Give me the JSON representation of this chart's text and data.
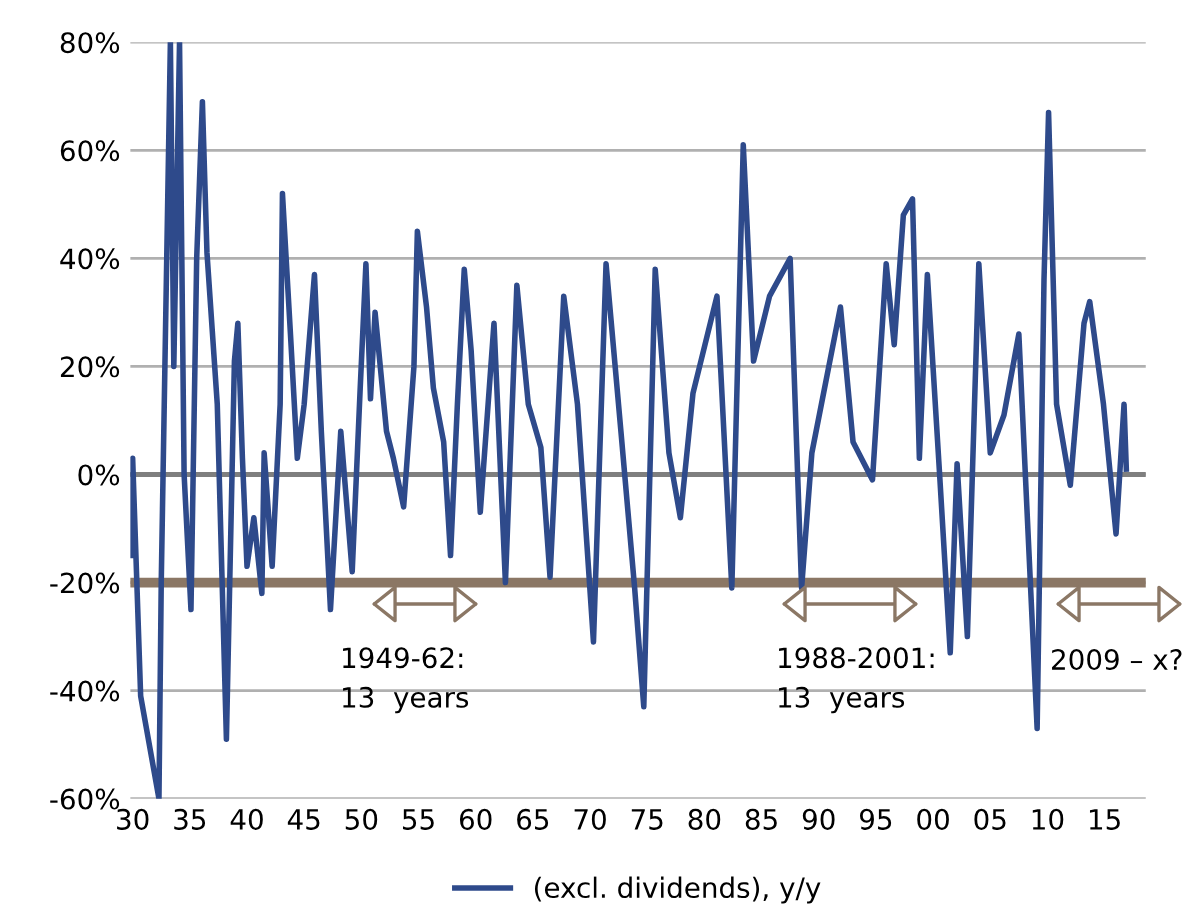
{
  "chart_data": {
    "type": "line",
    "x": [
      1929.9,
      1930.0,
      1930.7,
      1932.3,
      1932.5,
      1933.3,
      1933.6,
      1934.1,
      1934.5,
      1935.1,
      1935.6,
      1936.1,
      1936.5,
      1937.4,
      1938.2,
      1938.9,
      1939.2,
      1939.6,
      1940.0,
      1940.6,
      1941.3,
      1941.5,
      1942.2,
      1942.9,
      1943.1,
      1943.8,
      1944.4,
      1945.0,
      1945.9,
      1946.5,
      1947.3,
      1948.2,
      1949.2,
      1949.9,
      1950.4,
      1950.8,
      1951.2,
      1952.2,
      1952.8,
      1953.7,
      1954.6,
      1954.9,
      1955.7,
      1956.3,
      1957.2,
      1957.8,
      1958.4,
      1959.0,
      1959.6,
      1960.4,
      1961.6,
      1962.6,
      1963.6,
      1964.6,
      1965.7,
      1966.5,
      1967.7,
      1968.9,
      1970.3,
      1971.4,
      1972.7,
      1973.9,
      1974.7,
      1975.7,
      1976.9,
      1977.9,
      1979.0,
      1981.1,
      1982.4,
      1983.4,
      1984.3,
      1985.7,
      1987.5,
      1988.5,
      1989.4,
      1991.9,
      1993.0,
      1994.7,
      1995.9,
      1996.6,
      1997.4,
      1998.2,
      1998.8,
      1999.5,
      2000.6,
      2001.5,
      2002.1,
      2003.0,
      2004.0,
      2005.0,
      2006.2,
      2007.5,
      2008.2,
      2009.1,
      2009.7,
      2010.1,
      2010.8,
      2012.0,
      2013.2,
      2013.7,
      2014.9,
      2016.0,
      2016.7,
      2016.9
    ],
    "series": [
      {
        "name": "(excl. dividends), y/y",
        "color": "#2e4a8b",
        "values": [
          -15,
          3,
          -41,
          -60,
          -20,
          80,
          20,
          80,
          0,
          -25,
          40,
          69,
          41,
          13,
          -49,
          21,
          28,
          3,
          -17,
          -8,
          -22,
          4,
          -17,
          13,
          52,
          26,
          3,
          13,
          37,
          8,
          -25,
          8,
          -18,
          16,
          39,
          14,
          30,
          8,
          3,
          -6,
          20,
          45,
          31,
          16,
          6,
          -15,
          13,
          38,
          23,
          -7,
          28,
          -20,
          35,
          13,
          5,
          -19,
          33,
          13,
          -31,
          39,
          8,
          -21,
          -43,
          38,
          4,
          -8,
          15,
          33,
          -21,
          61,
          21,
          33,
          40,
          -21,
          4,
          31,
          6,
          -1,
          39,
          24,
          48,
          51,
          3,
          37,
          -1,
          -33,
          2,
          -30,
          39,
          4,
          11,
          26,
          -6,
          -47,
          36,
          67,
          13,
          -2,
          28,
          32,
          13,
          -11,
          13,
          1
        ]
      }
    ],
    "xlim": [
      1929.8,
      2018.6
    ],
    "ylim": [
      -60,
      80
    ],
    "xticks": [
      {
        "value": 1930,
        "label": "30"
      },
      {
        "value": 1935,
        "label": "35"
      },
      {
        "value": 1940,
        "label": "40"
      },
      {
        "value": 1945,
        "label": "45"
      },
      {
        "value": 1950,
        "label": "50"
      },
      {
        "value": 1955,
        "label": "55"
      },
      {
        "value": 1960,
        "label": "60"
      },
      {
        "value": 1965,
        "label": "65"
      },
      {
        "value": 1970,
        "label": "70"
      },
      {
        "value": 1975,
        "label": "75"
      },
      {
        "value": 1980,
        "label": "80"
      },
      {
        "value": 1985,
        "label": "85"
      },
      {
        "value": 1990,
        "label": "90"
      },
      {
        "value": 1995,
        "label": "95"
      },
      {
        "value": 2000,
        "label": "00"
      },
      {
        "value": 2005,
        "label": "05"
      },
      {
        "value": 2010,
        "label": "10"
      },
      {
        "value": 2015,
        "label": "15"
      }
    ],
    "yticks": [
      {
        "value": -60,
        "label": "-60%"
      },
      {
        "value": -40,
        "label": "-40%"
      },
      {
        "value": -20,
        "label": "-20%"
      },
      {
        "value": 0,
        "label": "0%"
      },
      {
        "value": 20,
        "label": "20%"
      },
      {
        "value": 40,
        "label": "40%"
      },
      {
        "value": 60,
        "label": "60%"
      },
      {
        "value": 80,
        "label": "80%"
      }
    ],
    "grid": "y",
    "legend": "bottom",
    "marker": "none",
    "line_style": "solid",
    "ref_lines": [
      {
        "axis": "y",
        "value": 0,
        "label": null,
        "color": "#7f7f7f"
      },
      {
        "axis": "y",
        "value": -20,
        "label": null,
        "color": "#8b7765"
      }
    ],
    "annotations": [
      "1949-62:\n13  years",
      "1988-2001:\n13  years",
      "2009 – x?"
    ]
  }
}
